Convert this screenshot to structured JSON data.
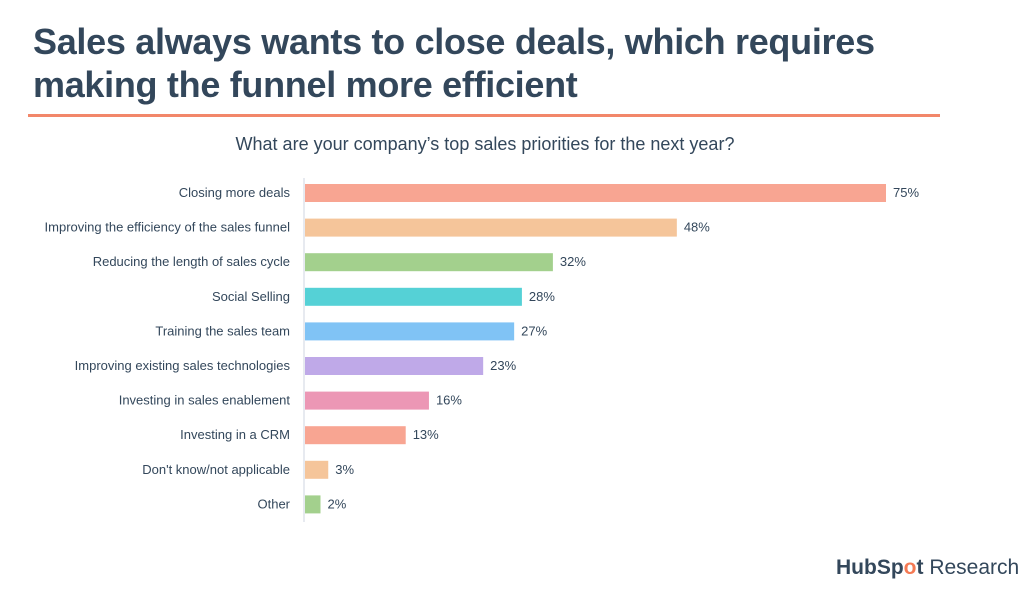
{
  "title_line1": "Sales always wants to close deals, which requires",
  "title_line2": "making the funnel more efficient",
  "logo": {
    "brand_pre": "HubSp",
    "brand_o": "o",
    "brand_post": "t",
    "suffix": "Research"
  },
  "chart_data": {
    "type": "bar",
    "orientation": "horizontal",
    "title": "What are your company’s top sales priorities for the next year?",
    "categories": [
      "Closing more deals",
      "Improving the efficiency of the sales funnel",
      "Reducing the length of sales cycle",
      "Social Selling",
      "Training the sales team",
      "Improving existing sales technologies",
      "Investing in sales enablement",
      "Investing in a CRM",
      "Don't know/not applicable",
      "Other"
    ],
    "values": [
      75,
      48,
      32,
      28,
      27,
      23,
      16,
      13,
      3,
      2
    ],
    "labels": [
      "75%",
      "48%",
      "32%",
      "28%",
      "27%",
      "23%",
      "16%",
      "13%",
      "3%",
      "2%"
    ],
    "colors": [
      "#f8a592",
      "#f5c59a",
      "#a3d08d",
      "#55d1d6",
      "#80c3f5",
      "#bfa9e8",
      "#ec97b5",
      "#f8a592",
      "#f5c59a",
      "#a3d08d"
    ],
    "xlim": [
      0,
      75
    ],
    "grid": false
  }
}
